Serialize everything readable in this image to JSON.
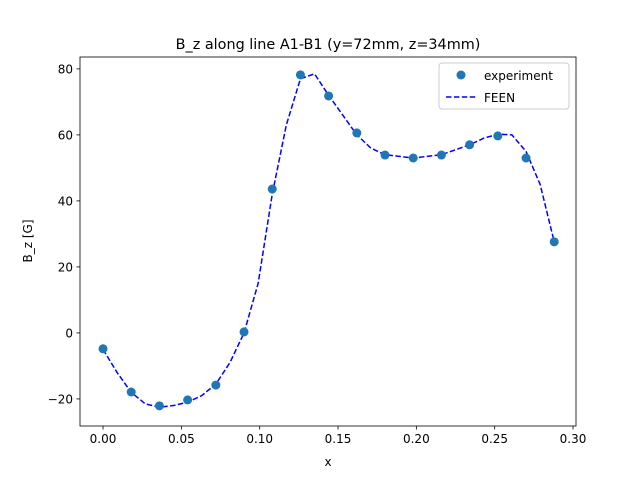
{
  "chart_data": {
    "type": "line",
    "title": "B_z along line A1-B1 (y=72mm, z=34mm)",
    "xlabel": "x",
    "ylabel": "B_z [G]",
    "xlim": [
      -0.0147,
      0.3019
    ],
    "ylim": [
      -28.2,
      83.6
    ],
    "xticks": [
      0.0,
      0.05,
      0.1,
      0.15,
      0.2,
      0.25,
      0.3
    ],
    "xtick_labels": [
      "0.00",
      "0.05",
      "0.10",
      "0.15",
      "0.20",
      "0.25",
      "0.30"
    ],
    "yticks": [
      -20,
      0,
      20,
      40,
      60,
      80
    ],
    "ytick_labels": [
      "−20",
      "0",
      "20",
      "40",
      "60",
      "80"
    ],
    "grid": false,
    "legend_position": "top-right",
    "series": [
      {
        "name": "experiment",
        "style": "markers",
        "color": "#1f77b4",
        "x": [
          0,
          0.018,
          0.036,
          0.054,
          0.072,
          0.09,
          0.108,
          0.126,
          0.144,
          0.162,
          0.18,
          0.198,
          0.216,
          0.234,
          0.252,
          0.27,
          0.288
        ],
        "y": [
          -4.8,
          -17.9,
          -22.1,
          -20.3,
          -15.8,
          0.3,
          43.6,
          78.2,
          71.8,
          60.6,
          53.9,
          53.0,
          53.9,
          57.0,
          59.7,
          53.0,
          27.6
        ]
      },
      {
        "name": "FEEN",
        "style": "dashed",
        "color": "#0000ff",
        "x": [
          0,
          0.009,
          0.018,
          0.027,
          0.036,
          0.045,
          0.054,
          0.063,
          0.072,
          0.081,
          0.09,
          0.099,
          0.108,
          0.117,
          0.126,
          0.135,
          0.144,
          0.153,
          0.162,
          0.171,
          0.18,
          0.189,
          0.198,
          0.207,
          0.216,
          0.225,
          0.234,
          0.243,
          0.252,
          0.261,
          0.27,
          0.279,
          0.288
        ],
        "y": [
          -5,
          -12,
          -18,
          -21.5,
          -22.5,
          -22,
          -21,
          -19,
          -15.5,
          -9,
          0,
          15,
          42,
          63,
          77,
          78.5,
          72,
          66,
          60,
          56,
          54,
          53.5,
          53,
          53.5,
          54,
          55.5,
          57,
          59,
          60.2,
          60,
          55,
          45,
          27.6
        ]
      }
    ]
  }
}
